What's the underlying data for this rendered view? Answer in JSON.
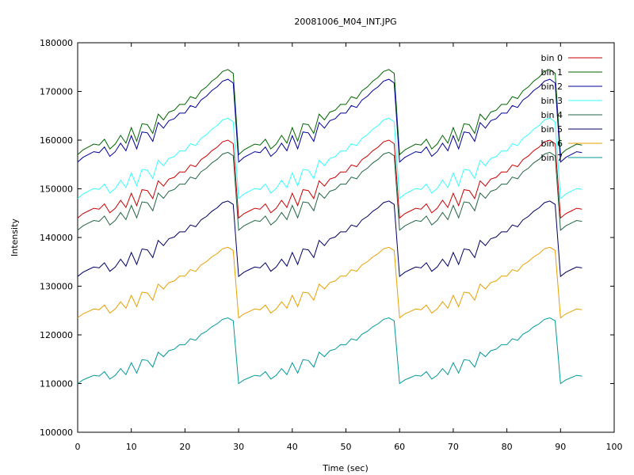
{
  "chart_data": {
    "type": "line",
    "title": "20081006_M04_INT.JPG",
    "xlabel": "Time (sec)",
    "ylabel": "Intensity",
    "xlim": [
      0,
      100
    ],
    "ylim": [
      100000,
      180000
    ],
    "xticks": [
      0,
      10,
      20,
      30,
      40,
      50,
      60,
      70,
      80,
      90,
      100
    ],
    "yticks": [
      100000,
      110000,
      120000,
      130000,
      140000,
      150000,
      160000,
      170000,
      180000
    ],
    "grid": false,
    "legend_position": "top-right",
    "period_sec": 30,
    "x": [
      0,
      94
    ],
    "series": [
      {
        "name": "bin 0",
        "color": "#cc0000",
        "cycle_start": 144000,
        "cycle_end": 160000
      },
      {
        "name": "bin 1",
        "color": "#006600",
        "cycle_start": 157000,
        "cycle_end": 174500
      },
      {
        "name": "bin 2",
        "color": "#000099",
        "cycle_start": 155500,
        "cycle_end": 172500
      },
      {
        "name": "bin 3",
        "color": "#33ffff",
        "cycle_start": 148000,
        "cycle_end": 164500
      },
      {
        "name": "bin 4",
        "color": "#226644",
        "cycle_start": 141500,
        "cycle_end": 157500
      },
      {
        "name": "bin 5",
        "color": "#000066",
        "cycle_start": 132000,
        "cycle_end": 147500
      },
      {
        "name": "bin 6",
        "color": "#e8a000",
        "cycle_start": 123500,
        "cycle_end": 138000
      },
      {
        "name": "bin 7",
        "color": "#009999",
        "cycle_start": 110000,
        "cycle_end": 123500
      }
    ]
  }
}
